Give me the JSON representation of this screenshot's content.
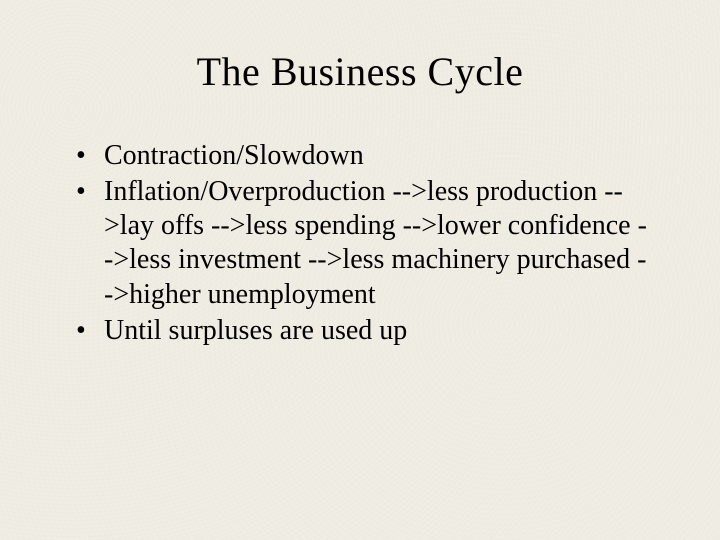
{
  "slide": {
    "title": "The Business Cycle",
    "bullets": [
      "Contraction/Slowdown",
      "Inflation/Overproduction -->less production -->lay offs -->less spending -->lower confidence -->less investment -->less machinery purchased -->higher unemployment",
      "Until surpluses are used up"
    ],
    "background_color": "#f0ede4",
    "text_color": "#000000",
    "title_fontsize": 40,
    "bullet_fontsize": 28,
    "font_family": "Times New Roman"
  }
}
